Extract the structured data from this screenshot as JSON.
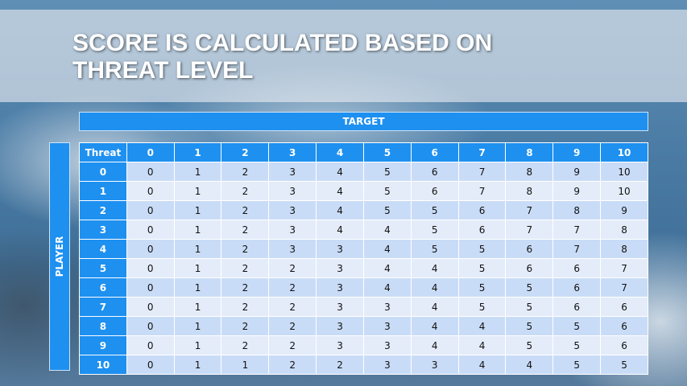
{
  "title": {
    "line1": "SCORE IS CALCULATED BASED ON",
    "line2": "THREAT LEVEL"
  },
  "target_label": "TARGET",
  "player_label": "PLAYER",
  "table": {
    "corner": "Threat",
    "columns": [
      "0",
      "1",
      "2",
      "3",
      "4",
      "5",
      "6",
      "7",
      "8",
      "9",
      "10"
    ],
    "rows": [
      {
        "label": "0",
        "values": [
          "0",
          "1",
          "2",
          "3",
          "4",
          "5",
          "6",
          "7",
          "8",
          "9",
          "10"
        ]
      },
      {
        "label": "1",
        "values": [
          "0",
          "1",
          "2",
          "3",
          "4",
          "5",
          "6",
          "7",
          "8",
          "9",
          "10"
        ]
      },
      {
        "label": "2",
        "values": [
          "0",
          "1",
          "2",
          "3",
          "4",
          "5",
          "5",
          "6",
          "7",
          "8",
          "9"
        ]
      },
      {
        "label": "3",
        "values": [
          "0",
          "1",
          "2",
          "3",
          "4",
          "4",
          "5",
          "6",
          "7",
          "7",
          "8"
        ]
      },
      {
        "label": "4",
        "values": [
          "0",
          "1",
          "2",
          "3",
          "3",
          "4",
          "5",
          "5",
          "6",
          "7",
          "8"
        ]
      },
      {
        "label": "5",
        "values": [
          "0",
          "1",
          "2",
          "2",
          "3",
          "4",
          "4",
          "5",
          "6",
          "6",
          "7"
        ]
      },
      {
        "label": "6",
        "values": [
          "0",
          "1",
          "2",
          "2",
          "3",
          "4",
          "4",
          "5",
          "5",
          "6",
          "7"
        ]
      },
      {
        "label": "7",
        "values": [
          "0",
          "1",
          "2",
          "2",
          "3",
          "3",
          "4",
          "5",
          "5",
          "6",
          "6"
        ]
      },
      {
        "label": "8",
        "values": [
          "0",
          "1",
          "2",
          "2",
          "3",
          "3",
          "4",
          "4",
          "5",
          "5",
          "6"
        ]
      },
      {
        "label": "9",
        "values": [
          "0",
          "1",
          "2",
          "2",
          "3",
          "3",
          "4",
          "4",
          "5",
          "5",
          "6"
        ]
      },
      {
        "label": "10",
        "values": [
          "0",
          "1",
          "1",
          "2",
          "2",
          "3",
          "3",
          "4",
          "4",
          "5",
          "5"
        ]
      }
    ]
  },
  "colors": {
    "header": "#1e90f0",
    "row_dark": "#c9dcf7",
    "row_light": "#e4ecfa"
  }
}
